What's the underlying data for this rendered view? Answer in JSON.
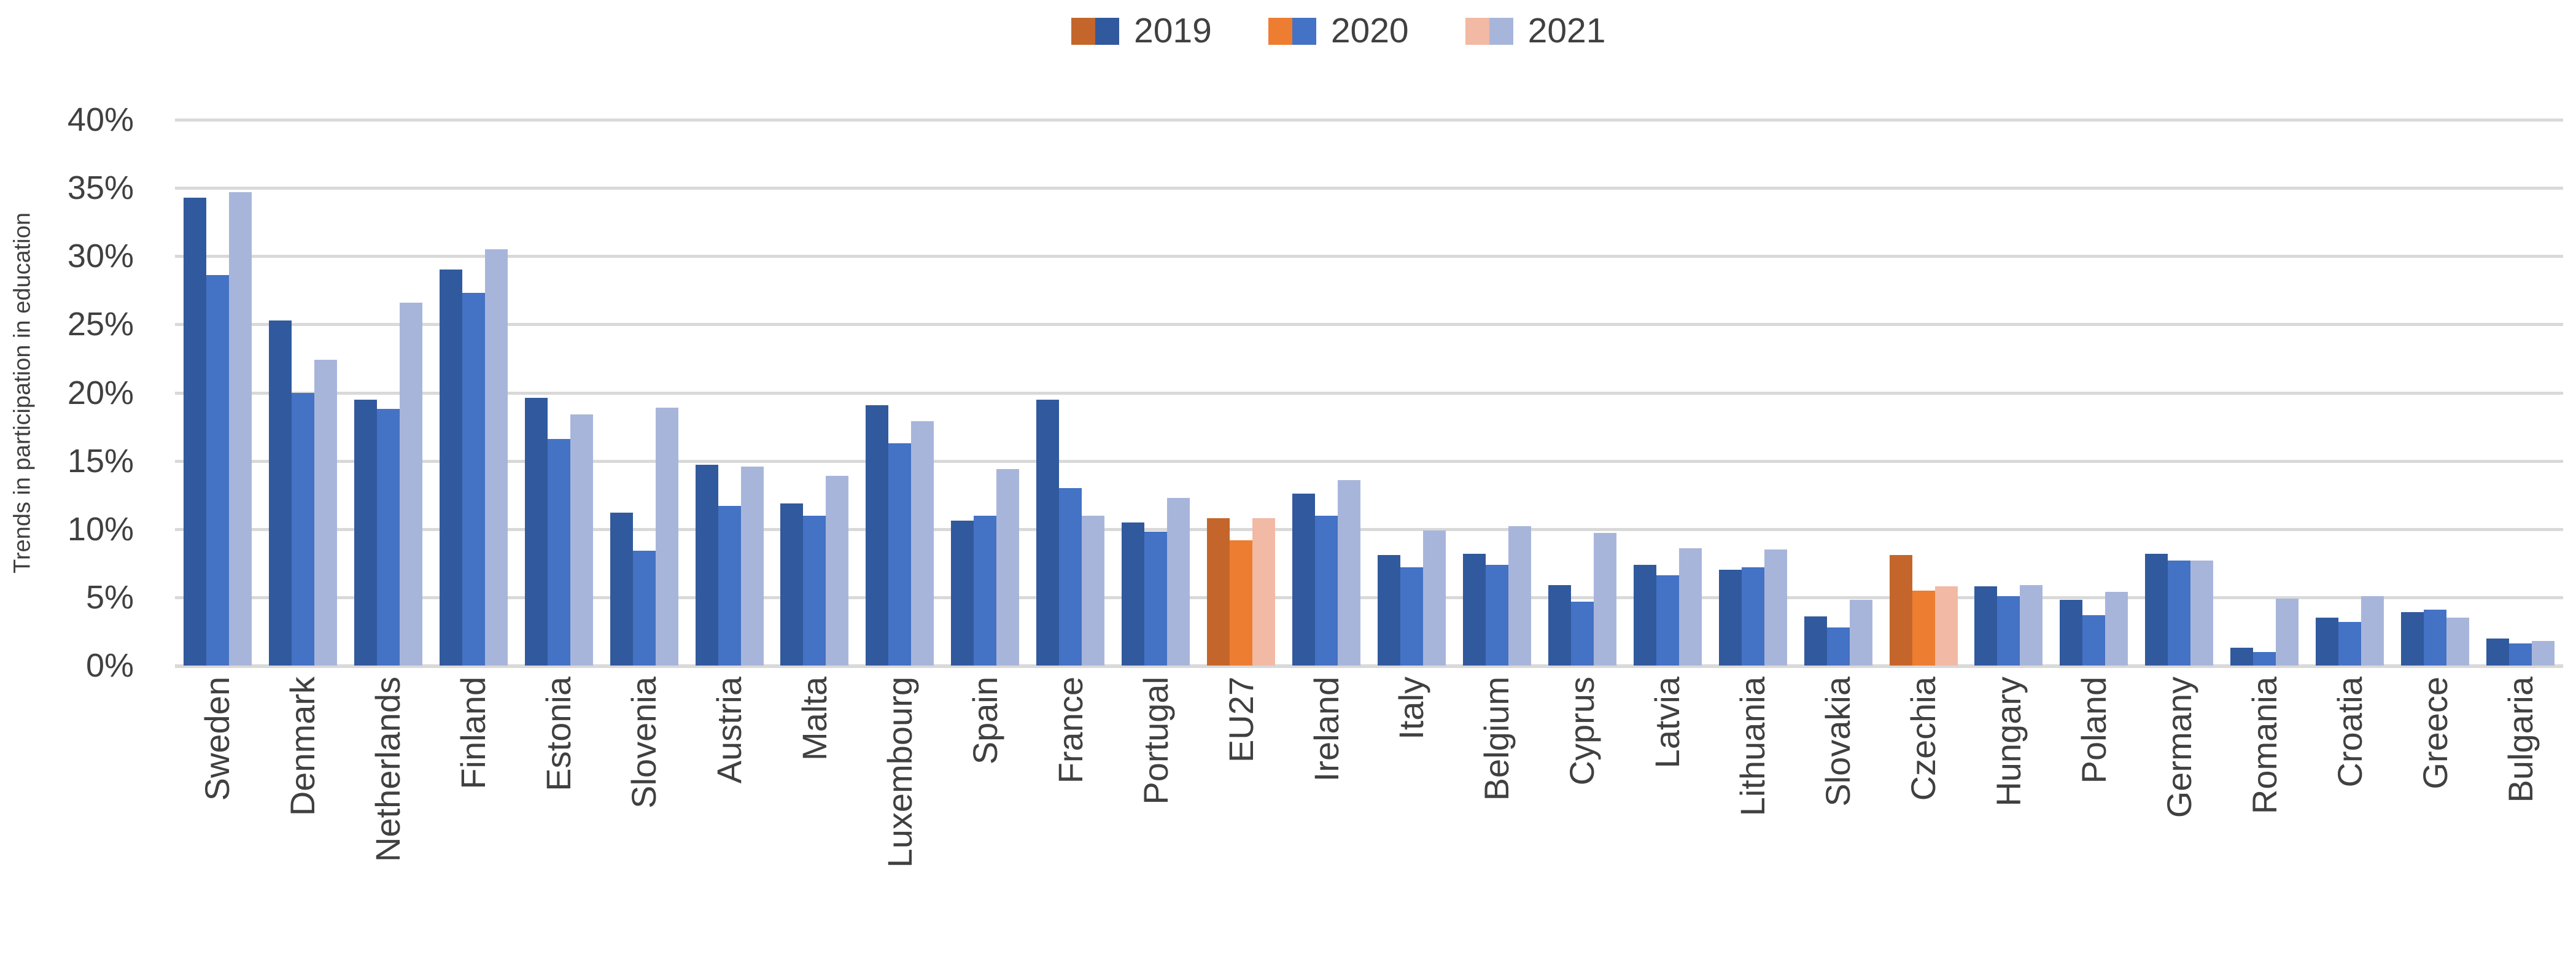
{
  "chart_data": {
    "type": "bar",
    "title": "",
    "ylabel": "Trends in participation in education",
    "xlabel": "",
    "ylim": [
      0,
      40
    ],
    "y_tick_step": 5,
    "y_ticks": [
      "40%",
      "35%",
      "30%",
      "25%",
      "20%",
      "15%",
      "10%",
      "5%",
      "0%"
    ],
    "grid": true,
    "legend_position": "top",
    "categories": [
      "Sweden",
      "Denmark",
      "Netherlands",
      "Finland",
      "Estonia",
      "Slovenia",
      "Austria",
      "Malta",
      "Luxembourg",
      "Spain",
      "France",
      "Portugal",
      "EU27",
      "Ireland",
      "Italy",
      "Belgium",
      "Cyprus",
      "Latvia",
      "Lithuania",
      "Slovakia",
      "Czechia",
      "Hungary",
      "Poland",
      "Germany",
      "Romania",
      "Croatia",
      "Greece",
      "Bulgaria"
    ],
    "highlighted_categories": [
      "EU27",
      "Czechia"
    ],
    "series": [
      {
        "name": "2019",
        "values": [
          34.3,
          25.3,
          19.5,
          29.0,
          19.6,
          11.2,
          14.7,
          11.9,
          19.1,
          10.6,
          19.5,
          10.5,
          10.8,
          12.6,
          8.1,
          8.2,
          5.9,
          7.4,
          7.0,
          3.6,
          8.1,
          5.8,
          4.8,
          8.2,
          1.3,
          3.5,
          3.9,
          2.0
        ]
      },
      {
        "name": "2020",
        "values": [
          28.6,
          20.0,
          18.8,
          27.3,
          16.6,
          8.4,
          11.7,
          11.0,
          16.3,
          11.0,
          13.0,
          9.8,
          9.2,
          11.0,
          7.2,
          7.4,
          4.7,
          6.6,
          7.2,
          2.8,
          5.5,
          5.1,
          3.7,
          7.7,
          1.0,
          3.2,
          4.1,
          1.6
        ]
      },
      {
        "name": "2021",
        "values": [
          34.7,
          22.4,
          26.6,
          30.5,
          18.4,
          18.9,
          14.6,
          13.9,
          17.9,
          14.4,
          11.0,
          12.3,
          10.8,
          13.6,
          9.9,
          10.2,
          9.7,
          8.6,
          8.5,
          4.8,
          5.8,
          5.9,
          5.4,
          7.7,
          4.9,
          5.1,
          3.5,
          1.8
        ]
      }
    ],
    "colors": {
      "blue_2019": "#31599D",
      "blue_2020": "#4472C4",
      "blue_2021": "#A8B5DB",
      "orange_2019": "#C4662B",
      "orange_2020": "#ED7D31",
      "orange_2021": "#F2B9A4",
      "gridline": "#D9D9D9",
      "text": "#404040"
    }
  }
}
